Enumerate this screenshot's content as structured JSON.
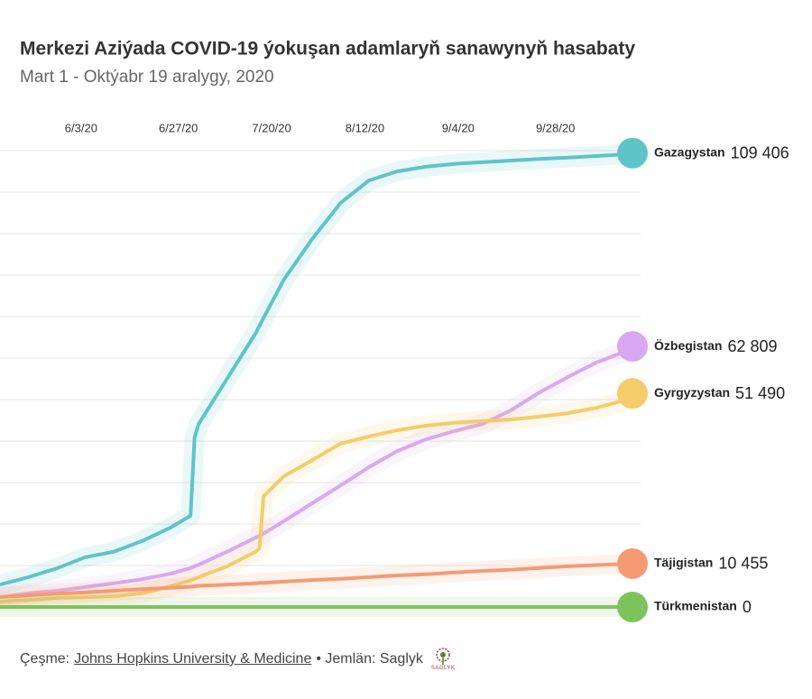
{
  "chart_data": {
    "type": "line",
    "title": "Merkezi Aziýada COVID-19 ýokuşan adamlaryň sanawynyň hasabaty",
    "subtitle": "Mart 1 - Oktýabr 19 aralygy, 2020",
    "x": [
      "2020-05-14",
      "2020-05-21",
      "2020-05-28",
      "2020-06-04",
      "2020-06-11",
      "2020-06-18",
      "2020-06-25",
      "2020-06-30",
      "2020-07-01",
      "2020-07-02",
      "2020-07-09",
      "2020-07-16",
      "2020-07-17",
      "2020-07-18",
      "2020-07-23",
      "2020-07-30",
      "2020-08-06",
      "2020-08-13",
      "2020-08-20",
      "2020-08-27",
      "2020-09-03",
      "2020-09-10",
      "2020-09-17",
      "2020-09-24",
      "2020-10-01",
      "2020-10-08",
      "2020-10-15",
      "2020-10-17"
    ],
    "xlim": [
      "2020-05-14",
      "2020-10-19"
    ],
    "xticks": [
      {
        "value": "2020-06-03",
        "label": "6/3/20"
      },
      {
        "value": "2020-06-27",
        "label": "6/27/20"
      },
      {
        "value": "2020-07-20",
        "label": "7/20/20"
      },
      {
        "value": "2020-08-12",
        "label": "8/12/20"
      },
      {
        "value": "2020-09-04",
        "label": "9/4/20"
      },
      {
        "value": "2020-09-28",
        "label": "9/28/20"
      }
    ],
    "ylim": [
      0,
      110000
    ],
    "yticks": [
      0,
      10000,
      20000,
      30000,
      40000,
      50000,
      60000,
      70000,
      80000,
      90000,
      100000,
      110000
    ],
    "grid": true,
    "series": [
      {
        "name": "Gazagystan",
        "color": "#5ec4c9",
        "values": [
          5400,
          7200,
          9300,
          12000,
          13300,
          15900,
          19100,
          22000,
          40900,
          44100,
          55000,
          65900,
          67800,
          69700,
          78900,
          88700,
          97400,
          102800,
          105000,
          106100,
          106800,
          107200,
          107600,
          108000,
          108300,
          108700,
          109100,
          109406
        ],
        "value_labels": [
          null,
          null,
          null,
          null,
          null,
          null,
          null,
          null,
          null,
          null,
          null,
          null,
          null,
          null,
          null,
          null,
          null,
          null,
          null,
          null,
          null,
          null,
          null,
          null,
          null,
          null,
          null,
          "109 406"
        ]
      },
      {
        "name": "Özbegistan",
        "color": "#d9a8f0",
        "values": [
          2400,
          3300,
          3900,
          4800,
          5700,
          6700,
          8000,
          9400,
          9800,
          10200,
          13300,
          16700,
          17200,
          17700,
          20700,
          25000,
          29300,
          33700,
          37600,
          40400,
          42400,
          44100,
          47400,
          51700,
          55400,
          58900,
          61500,
          62809
        ],
        "value_labels": [
          null,
          null,
          null,
          null,
          null,
          null,
          null,
          null,
          null,
          null,
          null,
          null,
          null,
          null,
          null,
          null,
          null,
          null,
          null,
          null,
          null,
          null,
          null,
          null,
          null,
          null,
          null,
          "62 809"
        ]
      },
      {
        "name": "Gyrgyzystan",
        "color": "#f4cc6a",
        "values": [
          1300,
          1700,
          2200,
          2400,
          2600,
          3300,
          5000,
          6400,
          6800,
          7200,
          9800,
          13300,
          14100,
          26700,
          31500,
          35400,
          39400,
          41100,
          42600,
          43700,
          44400,
          44800,
          45200,
          45900,
          46700,
          48000,
          49800,
          51490
        ],
        "value_labels": [
          null,
          null,
          null,
          null,
          null,
          null,
          null,
          null,
          null,
          null,
          null,
          null,
          null,
          null,
          null,
          null,
          null,
          null,
          null,
          null,
          null,
          null,
          null,
          null,
          null,
          null,
          null,
          "51 490"
        ]
      },
      {
        "name": "Täjigistan",
        "color": "#f59a73",
        "values": [
          2400,
          2800,
          3200,
          3500,
          3900,
          4300,
          4600,
          4900,
          5000,
          5100,
          5400,
          5700,
          5800,
          5800,
          6100,
          6500,
          6800,
          7200,
          7600,
          7900,
          8300,
          8700,
          9000,
          9400,
          9800,
          10100,
          10400,
          10455
        ],
        "value_labels": [
          null,
          null,
          null,
          null,
          null,
          null,
          null,
          null,
          null,
          null,
          null,
          null,
          null,
          null,
          null,
          null,
          null,
          null,
          null,
          null,
          null,
          null,
          null,
          null,
          null,
          null,
          null,
          "10 455"
        ]
      },
      {
        "name": "Türkmenistan",
        "color": "#7cc35c",
        "values": [
          0,
          0,
          0,
          0,
          0,
          0,
          0,
          0,
          0,
          0,
          0,
          0,
          0,
          0,
          0,
          0,
          0,
          0,
          0,
          0,
          0,
          0,
          0,
          0,
          0,
          0,
          0,
          0
        ],
        "value_labels": [
          null,
          null,
          null,
          null,
          null,
          null,
          null,
          null,
          null,
          null,
          null,
          null,
          null,
          null,
          null,
          null,
          null,
          null,
          null,
          null,
          null,
          null,
          null,
          null,
          null,
          null,
          null,
          "0"
        ]
      }
    ]
  },
  "footer": {
    "source_label": "Çeşme:",
    "source": "Johns Hopkins University & Medicine",
    "credit": "• Jemlän: Saglyk",
    "logo_text": "SAGLYK"
  }
}
